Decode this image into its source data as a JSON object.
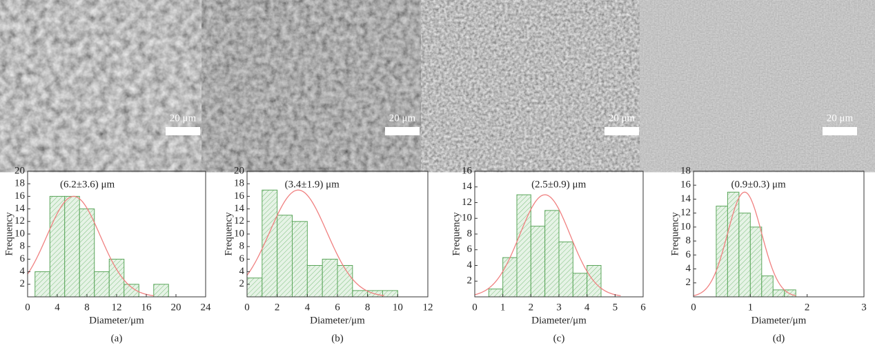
{
  "micrographs": [
    {
      "scale_label": "20 μm"
    },
    {
      "scale_label": "20 μm"
    },
    {
      "scale_label": "20 μm"
    },
    {
      "scale_label": "20 μm"
    }
  ],
  "chart_data": [
    {
      "type": "histogram",
      "caption": "(a)",
      "annotation": "(6.2±3.6) μm",
      "xlabel": "Diameter/μm",
      "ylabel": "Frequency",
      "bins": [
        1,
        3,
        5,
        7,
        9,
        11,
        13,
        15,
        17,
        19
      ],
      "values": [
        4,
        16,
        16,
        14,
        4,
        6,
        2,
        0,
        2
      ],
      "color": "#5aa55a",
      "fit": {
        "mean": 6.2,
        "sd": 3.6,
        "peak": 16,
        "color": "#f08080"
      },
      "xlim": [
        0,
        24
      ],
      "xticks": [
        0,
        4,
        8,
        12,
        16,
        20,
        24
      ],
      "ylim": [
        0,
        20
      ],
      "yticks": [
        2,
        4,
        6,
        8,
        10,
        12,
        14,
        16,
        18,
        20
      ]
    },
    {
      "type": "histogram",
      "caption": "(b)",
      "annotation": "(3.4±1.9) μm",
      "xlabel": "Diameter/μm",
      "ylabel": "Frequency",
      "bins": [
        0,
        1,
        2,
        3,
        4,
        5,
        6,
        7,
        8,
        9,
        10
      ],
      "values": [
        3,
        17,
        13,
        12,
        5,
        6,
        5,
        1,
        1,
        1
      ],
      "color": "#5aa55a",
      "fit": {
        "mean": 3.4,
        "sd": 1.9,
        "peak": 17,
        "color": "#f08080"
      },
      "xlim": [
        0,
        12
      ],
      "xticks": [
        0,
        2,
        4,
        6,
        8,
        10,
        12
      ],
      "ylim": [
        0,
        20
      ],
      "yticks": [
        2,
        4,
        6,
        8,
        10,
        12,
        14,
        16,
        18,
        20
      ]
    },
    {
      "type": "histogram",
      "caption": "(c)",
      "annotation": "(2.5±0.9) μm",
      "xlabel": "Diameter/μm",
      "ylabel": "Frequency",
      "bins": [
        0.5,
        1,
        1.5,
        2,
        2.5,
        3,
        3.5,
        4,
        4.5
      ],
      "values": [
        1,
        5,
        13,
        9,
        11,
        7,
        3,
        4
      ],
      "color": "#5aa55a",
      "fit": {
        "mean": 2.5,
        "sd": 0.9,
        "peak": 13,
        "color": "#f08080"
      },
      "xlim": [
        0,
        6
      ],
      "xticks": [
        0,
        1,
        2,
        3,
        4,
        5,
        6
      ],
      "ylim": [
        0,
        16
      ],
      "yticks": [
        2,
        4,
        6,
        8,
        10,
        12,
        14,
        16
      ]
    },
    {
      "type": "histogram",
      "caption": "(d)",
      "annotation": "(0.9±0.3) μm",
      "xlabel": "Diameter/μm",
      "ylabel": "Frequency",
      "bins": [
        0.4,
        0.6,
        0.8,
        1.0,
        1.2,
        1.4,
        1.6,
        1.8
      ],
      "values": [
        13,
        15,
        12,
        10,
        3,
        1,
        1
      ],
      "color": "#5aa55a",
      "fit": {
        "mean": 0.9,
        "sd": 0.3,
        "peak": 15,
        "color": "#f08080"
      },
      "xlim": [
        0,
        3
      ],
      "xticks": [
        0,
        1,
        2,
        3
      ],
      "ylim": [
        0,
        18
      ],
      "yticks": [
        2,
        4,
        6,
        8,
        10,
        12,
        14,
        16,
        18
      ]
    }
  ]
}
